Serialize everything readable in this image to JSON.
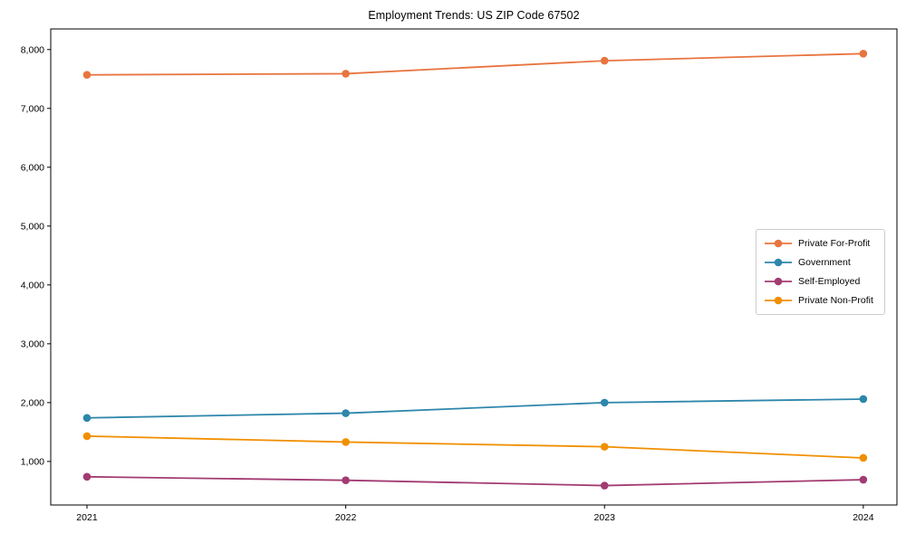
{
  "chart_data": {
    "type": "line",
    "title": "Employment Trends: US ZIP Code 67502",
    "x": [
      2021,
      2022,
      2023,
      2024
    ],
    "x_tick_labels": [
      "2021",
      "2022",
      "2023",
      "2024"
    ],
    "y_ticks": [
      1000,
      2000,
      3000,
      4000,
      5000,
      6000,
      7000,
      8000
    ],
    "y_tick_labels": [
      "1,000",
      "2,000",
      "3,000",
      "4,000",
      "5,000",
      "6,000",
      "7,000",
      "8,000"
    ],
    "xlim": [
      2020.86,
      2024.13
    ],
    "ylim": [
      260,
      8350
    ],
    "grid": false,
    "legend_position": "center-right",
    "axis_color": "#000000",
    "background_color": "#ffffff",
    "series": [
      {
        "name": "Private For-Profit",
        "color": "#E8743F",
        "values": [
          7570,
          7590,
          7810,
          7930
        ]
      },
      {
        "name": "Government",
        "color": "#2E86AB",
        "values": [
          1740,
          1820,
          2000,
          2060
        ]
      },
      {
        "name": "Self-Employed",
        "color": "#A23B72",
        "values": [
          740,
          680,
          590,
          690
        ]
      },
      {
        "name": "Private Non-Profit",
        "color": "#F18F01",
        "values": [
          1430,
          1330,
          1250,
          1060
        ]
      }
    ]
  }
}
